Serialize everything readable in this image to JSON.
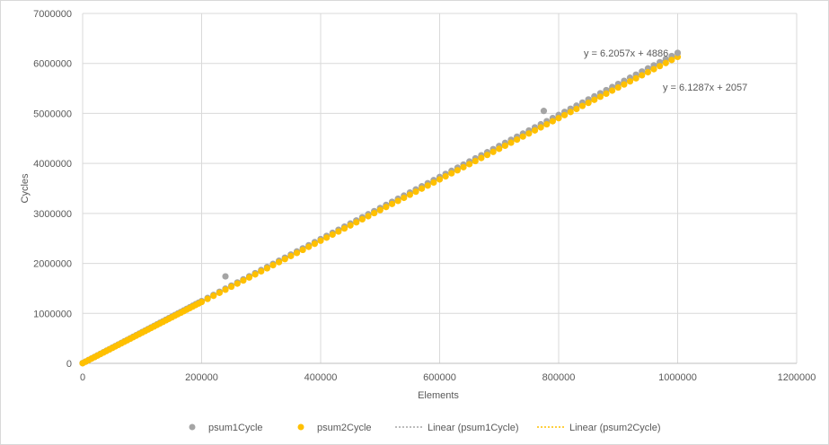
{
  "chart_data": {
    "type": "scatter",
    "xlabel": "Elements",
    "ylabel": "Cycles",
    "xlim": [
      0,
      1200000
    ],
    "ylim": [
      0,
      7000000
    ],
    "x_ticks": [
      "0",
      "200000",
      "400000",
      "600000",
      "800000",
      "1000000",
      "1200000"
    ],
    "y_ticks": [
      "0",
      "1000000",
      "2000000",
      "3000000",
      "4000000",
      "5000000",
      "6000000",
      "7000000"
    ],
    "grid": true,
    "legend_position": "bottom",
    "colors": {
      "psum1": "#a5a5a5",
      "psum2": "#ffc000",
      "gridline": "#d9d9d9",
      "axis": "#bfbfbf"
    },
    "series": [
      {
        "name": "psum1Cycle",
        "points": [
          [
            240000,
            1740000
          ],
          [
            775000,
            5050000
          ],
          [
            1000000,
            6210000
          ]
        ],
        "note_visible": "psum1 points largely overlap psum2 except visible outliers"
      },
      {
        "name": "psum2Cycle",
        "x_start": 0,
        "x_end": 1000000,
        "x_step": 10000
      }
    ],
    "trendlines": [
      {
        "name": "Linear (psum1Cycle)",
        "slope": 6.2057,
        "intercept": 4886,
        "equation": "y = 6.2057x + 4886"
      },
      {
        "name": "Linear (psum2Cycle)",
        "slope": 6.1287,
        "intercept": 2057,
        "equation": "y = 6.1287x + 2057"
      }
    ],
    "legend": [
      "psum1Cycle",
      "psum2Cycle",
      "Linear (psum1Cycle)",
      "Linear (psum2Cycle)"
    ]
  }
}
